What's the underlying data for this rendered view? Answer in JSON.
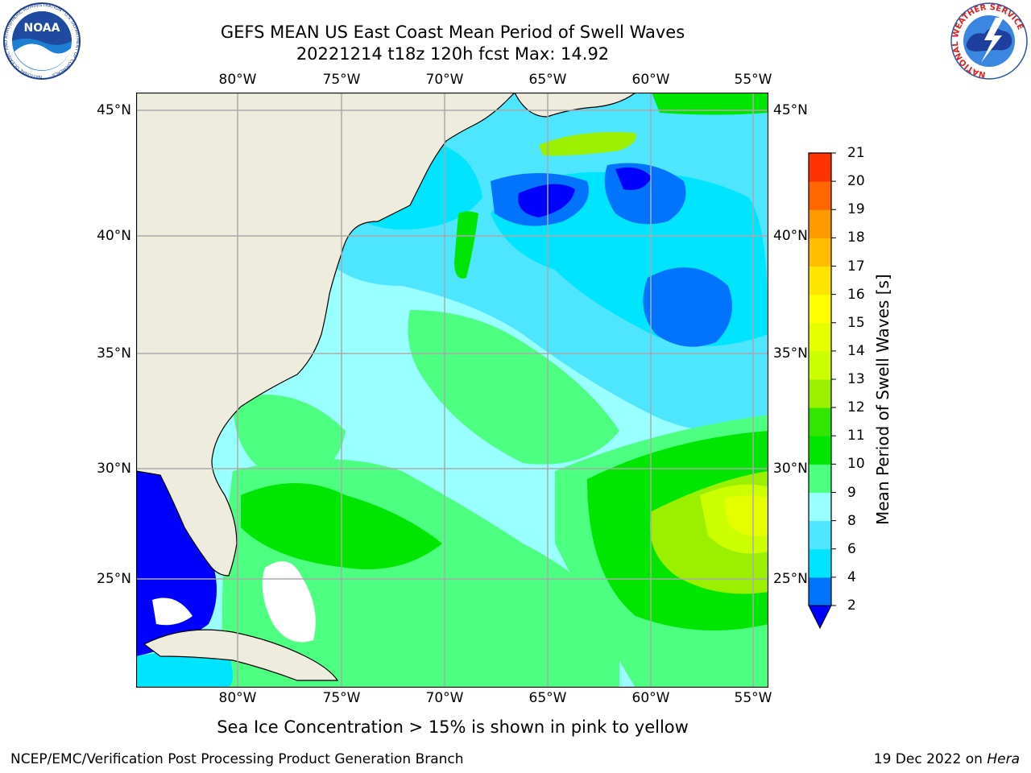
{
  "title_line1": "GEFS MEAN US East Coast Mean Period of Swell Waves",
  "title_line2": "20221214 t18z 120h fcst   Max: 14.92",
  "subtitle": "Sea Ice Concentration > 15% is shown in pink to yellow",
  "footer": {
    "left": "NCEP/EMC/Verification Post Processing Product Generation Branch",
    "right_date": "19 Dec 2022 on ",
    "right_system": "Hera"
  },
  "logos": {
    "noaa_text": "NOAA",
    "noaa_ring": "NATIONAL OCEANIC AND ATMOSPHERIC ADMINISTRATION · U.S. DEPARTMENT OF COMMERCE ·",
    "nws_ring": "NATIONAL WEATHER SERVICE"
  },
  "map": {
    "lon_labels": [
      "80°W",
      "75°W",
      "70°W",
      "65°W",
      "60°W",
      "55°W"
    ],
    "lat_labels": [
      "45°N",
      "40°N",
      "35°N",
      "30°N",
      "25°N"
    ],
    "land_color": "#eeecdc",
    "grid_color": "#aaaaaa"
  },
  "colorbar": {
    "title": "Mean Period of Swell Waves [s]",
    "levels": [
      2,
      4,
      6,
      8,
      9,
      10,
      11,
      12,
      13,
      14,
      15,
      16,
      17,
      18,
      19,
      20,
      21
    ],
    "colors": [
      "#0073ff",
      "#00e5ff",
      "#4de5ff",
      "#99ffff",
      "#4dff80",
      "#00e600",
      "#33e600",
      "#9bf000",
      "#ccff00",
      "#e6ff00",
      "#ffff00",
      "#ffe600",
      "#ffbf00",
      "#ff9900",
      "#ff6600",
      "#ff3300"
    ],
    "under_color": "#0000ff"
  },
  "field_colors": {
    "deep": "#0000ff",
    "c2": "#0073ff",
    "c4": "#00e5ff",
    "c6": "#4de5ff",
    "c8": "#99ffff",
    "c9": "#4dff80",
    "c10": "#00e600",
    "c12": "#9bf000",
    "c13": "#ccff00",
    "c14": "#e6ff00",
    "ice_gap": "#ffffff"
  }
}
